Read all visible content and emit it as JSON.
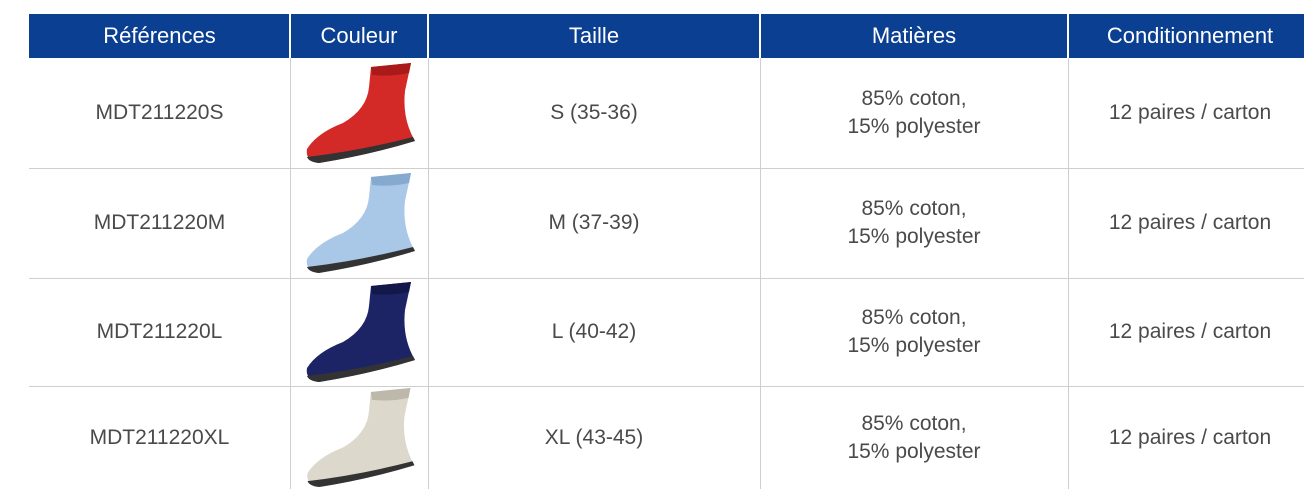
{
  "table": {
    "header": [
      "Références",
      "Couleur",
      "Taille",
      "Matières",
      "Conditionnement"
    ],
    "rows": [
      {
        "reference": "MDT211220S",
        "size": "S (35-36)",
        "materials": [
          "85% coton,",
          "15% polyester"
        ],
        "packaging": "12 paires / carton"
      },
      {
        "reference": "MDT211220M",
        "size": "M (37-39)",
        "materials": [
          "85% coton,",
          "15% polyester"
        ],
        "packaging": "12 paires / carton"
      },
      {
        "reference": "MDT211220L",
        "size": "L (40-42)",
        "materials": [
          "85% coton,",
          "15% polyester"
        ],
        "packaging": "12 paires / carton"
      },
      {
        "reference": "MDT211220XL",
        "size": "XL (43-45)",
        "materials": [
          "85% coton,",
          "15% polyester"
        ],
        "packaging": "12 paires / carton"
      }
    ]
  }
}
